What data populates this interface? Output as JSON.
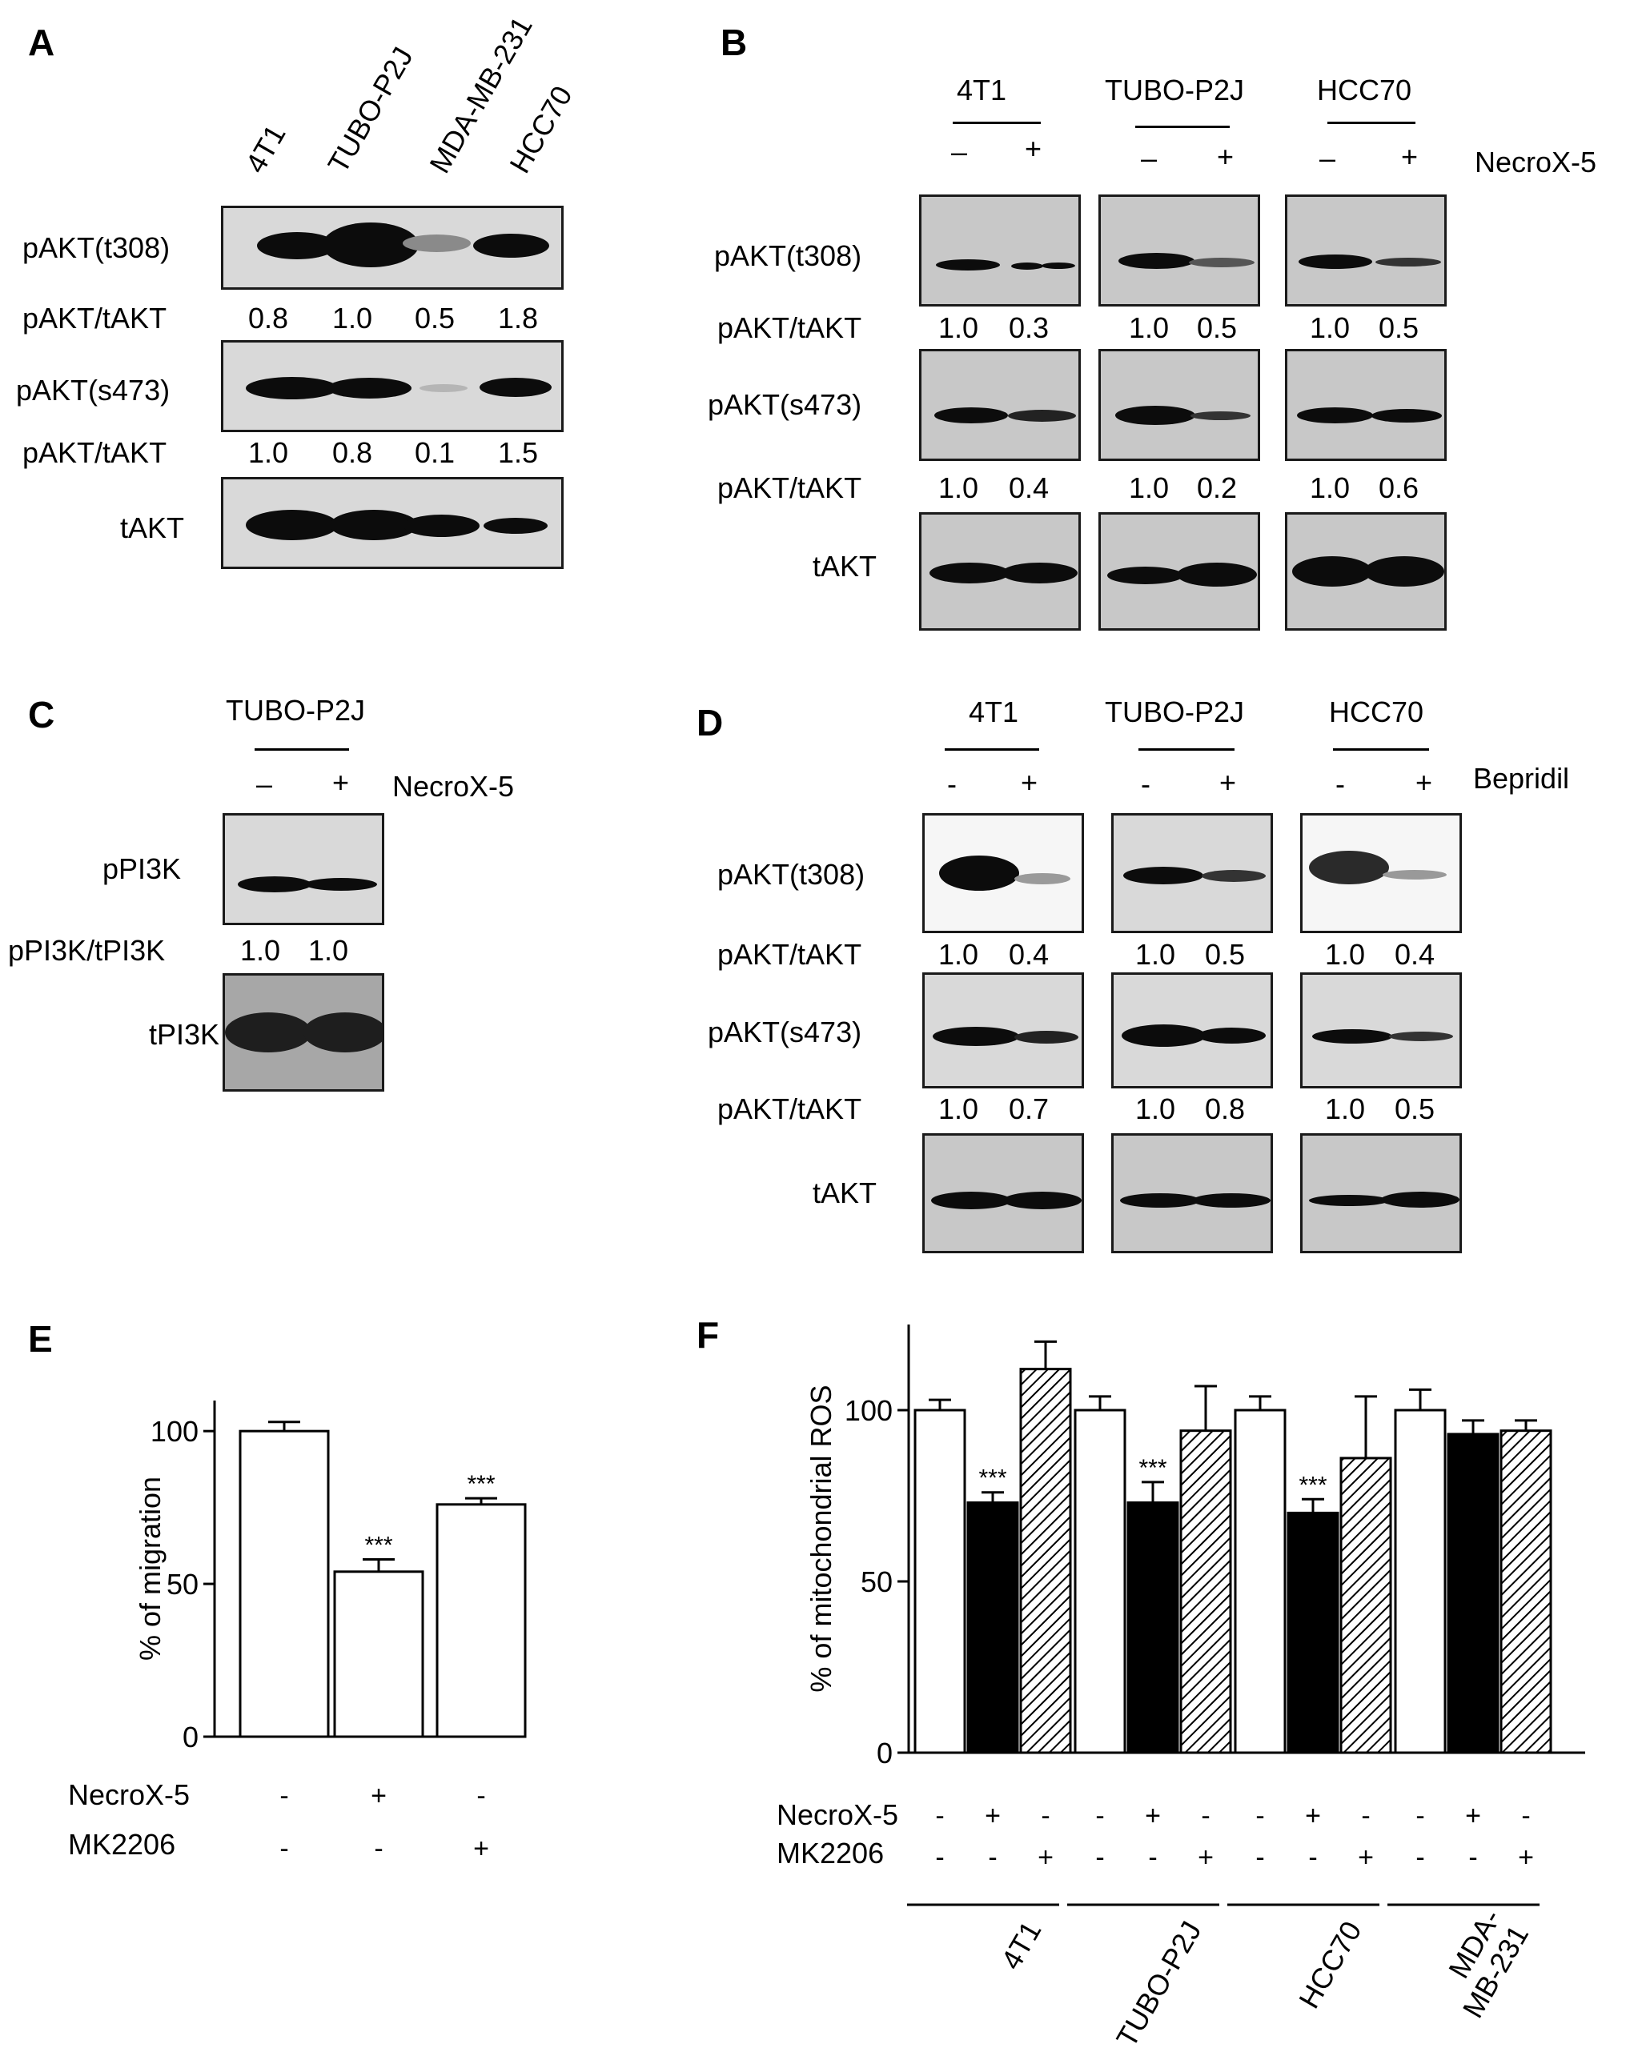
{
  "panelA": {
    "label": "A",
    "cell_lines": [
      "4T1",
      "TUBO-P2J",
      "MDA-MB-231",
      "HCC70"
    ],
    "rows": [
      "pAKT(t308)",
      "pAKT(s473)",
      "tAKT"
    ],
    "ratio_label": "pAKT/tAKT",
    "t308_ratios": [
      "0.8",
      "1.0",
      "0.5",
      "1.8"
    ],
    "s473_ratios": [
      "1.0",
      "0.8",
      "0.1",
      "1.5"
    ]
  },
  "panelB": {
    "label": "B",
    "groups": [
      "4T1",
      "TUBO-P2J",
      "HCC70"
    ],
    "treatment": "NecroX-5",
    "minus": "–",
    "plus": "+",
    "rows": [
      "pAKT(t308)",
      "pAKT(s473)",
      "tAKT"
    ],
    "ratio_label": "pAKT/tAKT",
    "t308_ratios": [
      [
        "1.0",
        "0.3"
      ],
      [
        "1.0",
        "0.5"
      ],
      [
        "1.0",
        "0.5"
      ]
    ],
    "s473_ratios": [
      [
        "1.0",
        "0.4"
      ],
      [
        "1.0",
        "0.2"
      ],
      [
        "1.0",
        "0.6"
      ]
    ]
  },
  "panelC": {
    "label": "C",
    "group": "TUBO-P2J",
    "treatment": "NecroX-5",
    "minus": "–",
    "plus": "+",
    "rows": [
      "pPI3K",
      "tPI3K"
    ],
    "ratio_label": "pPI3K/tPI3K",
    "ratios": [
      "1.0",
      "1.0"
    ]
  },
  "panelD": {
    "label": "D",
    "groups": [
      "4T1",
      "TUBO-P2J",
      "HCC70"
    ],
    "treatment": "Bepridil",
    "minus": "-",
    "plus": "+",
    "rows": [
      "pAKT(t308)",
      "pAKT(s473)",
      "tAKT"
    ],
    "ratio_label": "pAKT/tAKT",
    "t308_ratios": [
      [
        "1.0",
        "0.4"
      ],
      [
        "1.0",
        "0.5"
      ],
      [
        "1.0",
        "0.4"
      ]
    ],
    "s473_ratios": [
      [
        "1.0",
        "0.7"
      ],
      [
        "1.0",
        "0.8"
      ],
      [
        "1.0",
        "0.5"
      ]
    ]
  },
  "panelE": {
    "label": "E",
    "chart_data": {
      "type": "bar",
      "ylabel": "% of migration",
      "ylim": [
        0,
        110
      ],
      "yticks": [
        "0",
        "50",
        "100"
      ],
      "values": [
        100,
        54,
        76
      ],
      "errors": [
        3,
        4,
        2
      ],
      "significance": [
        "",
        "***",
        "***"
      ],
      "fills": [
        "white",
        "white",
        "white"
      ],
      "conditions": [
        {
          "name": "NecroX-5",
          "signs": [
            "-",
            "+",
            "-"
          ]
        },
        {
          "name": "MK2206",
          "signs": [
            "-",
            "-",
            "+"
          ]
        }
      ]
    }
  },
  "panelF": {
    "label": "F",
    "chart_data": {
      "type": "bar",
      "ylabel": "% of mitochondrial ROS",
      "ylim": [
        0,
        125
      ],
      "yticks": [
        "0",
        "50",
        "100"
      ],
      "groups": [
        "4T1",
        "TUBO-P2J",
        "HCC70",
        "MDA-\nMB-231"
      ],
      "values": [
        100,
        73,
        112,
        100,
        73,
        94,
        100,
        70,
        86,
        100,
        93,
        94
      ],
      "errors": [
        3,
        3,
        8,
        4,
        6,
        13,
        4,
        4,
        18,
        6,
        4,
        3
      ],
      "significance": [
        "",
        "***",
        "",
        "",
        "***",
        "",
        "",
        "***",
        "",
        "",
        "",
        ""
      ],
      "fills": [
        "white",
        "black",
        "hatch",
        "white",
        "black",
        "hatch",
        "white",
        "black",
        "hatch",
        "white",
        "black",
        "hatch"
      ],
      "conditions": [
        {
          "name": "NecroX-5",
          "signs": [
            "-",
            "+",
            "-",
            "-",
            "+",
            "-",
            "-",
            "+",
            "-",
            "-",
            "+",
            "-"
          ]
        },
        {
          "name": "MK2206",
          "signs": [
            "-",
            "-",
            "+",
            "-",
            "-",
            "+",
            "-",
            "-",
            "+",
            "-",
            "-",
            "+"
          ]
        }
      ]
    }
  }
}
